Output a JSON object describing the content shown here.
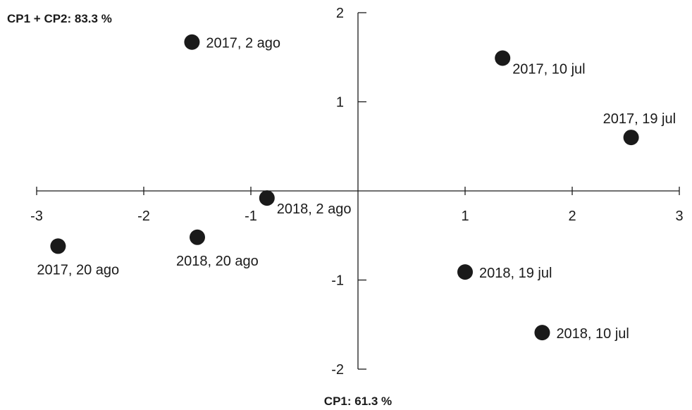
{
  "chart_data": {
    "type": "scatter",
    "xlabel": "CP1: 61.3 %",
    "ylabel": "CP1 + CP2: 83.3 %",
    "xlim": [
      -3,
      3
    ],
    "ylim": [
      -2,
      2
    ],
    "x_ticks": [
      -3,
      -2,
      -1,
      1,
      2,
      3
    ],
    "y_ticks": [
      2,
      1,
      -1,
      -2
    ],
    "x_tick_labels": [
      "-3",
      "-2",
      "-1",
      "1",
      "2",
      "3"
    ],
    "y_tick_labels": [
      "2",
      "1",
      "-1",
      "-2"
    ],
    "grid": false,
    "marker_color": "#1a1a1a",
    "points": [
      {
        "label": "2017, 2 ago",
        "x": -1.55,
        "y": 1.67,
        "label_side": "right"
      },
      {
        "label": "2017, 10 jul",
        "x": 1.35,
        "y": 1.49,
        "label_side": "below-right"
      },
      {
        "label": "2017, 19 jul",
        "x": 2.55,
        "y": 0.6,
        "label_side": "above"
      },
      {
        "label": "2018, 2 ago",
        "x": -0.85,
        "y": -0.08,
        "label_side": "below-right"
      },
      {
        "label": "2017, 20 ago",
        "x": -2.8,
        "y": -0.62,
        "label_side": "below"
      },
      {
        "label": "2018, 20 ago",
        "x": -1.5,
        "y": -0.52,
        "label_side": "below"
      },
      {
        "label": "2018, 19 jul",
        "x": 1.0,
        "y": -0.91,
        "label_side": "right"
      },
      {
        "label": "2018, 10 jul",
        "x": 1.72,
        "y": -1.59,
        "label_side": "right"
      }
    ]
  }
}
